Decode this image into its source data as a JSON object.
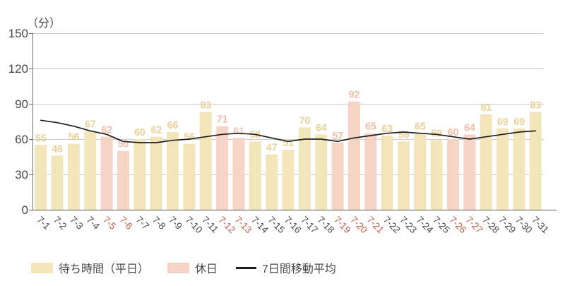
{
  "chart_data": {
    "type": "bar",
    "title": "",
    "ylabel": "（分）",
    "xlabel": "",
    "ylim": [
      0,
      150
    ],
    "yticks": [
      0,
      30,
      60,
      90,
      120,
      150
    ],
    "grid": true,
    "legend_position": "bottom",
    "categories": [
      "7-1",
      "7-2",
      "7-3",
      "7-4",
      "7-5",
      "7-6",
      "7-7",
      "7-8",
      "7-9",
      "7-10",
      "7-11",
      "7-12",
      "7-13",
      "7-14",
      "7-15",
      "7-16",
      "7-17",
      "7-18",
      "7-19",
      "7-20",
      "7-21",
      "7-22",
      "7-23",
      "7-24",
      "7-25",
      "7-26",
      "7-27",
      "7-28",
      "7-29",
      "7-30",
      "7-31"
    ],
    "values": [
      55,
      46,
      56,
      67,
      62,
      50,
      60,
      62,
      66,
      56,
      83,
      71,
      61,
      58,
      47,
      51,
      70,
      64,
      57,
      92,
      65,
      63,
      58,
      65,
      59,
      60,
      64,
      81,
      69,
      69,
      83
    ],
    "holiday_flags": [
      0,
      0,
      0,
      0,
      1,
      1,
      0,
      0,
      0,
      0,
      0,
      1,
      1,
      0,
      0,
      0,
      0,
      0,
      1,
      1,
      1,
      0,
      0,
      0,
      0,
      1,
      1,
      0,
      0,
      0,
      0
    ],
    "holiday_dates": [
      "7-5",
      "7-6",
      "7-12",
      "7-13",
      "7-19",
      "7-20",
      "7-21",
      "7-26",
      "7-27"
    ],
    "moving_average_estimated": [
      76,
      74,
      71,
      67,
      64,
      58,
      57,
      57,
      59,
      60,
      62,
      64,
      65,
      64,
      61,
      58,
      60,
      60,
      58,
      61,
      63,
      65,
      66,
      65,
      64,
      62,
      60,
      62,
      64,
      66,
      67
    ],
    "legend": [
      {
        "label": "待ち時間（平日）",
        "swatch": "bar",
        "color": "#f3e5ba"
      },
      {
        "label": "休日",
        "swatch": "bar",
        "color": "#f6d4c5"
      },
      {
        "label": "7日間移動平均",
        "swatch": "line",
        "color": "#1f1f1f"
      }
    ],
    "colors": {
      "weekday_bar": "#f3e5ba",
      "weekday_value_label": "#e8d299",
      "holiday_bar": "#f6d4c5",
      "holiday_value_label": "#efc0ab",
      "weekday_tick_label": "#4a4a4a",
      "holiday_tick_label": "#c1604a",
      "grid_line": "#cccccc",
      "axis_line": "#595959",
      "y_axis_line": "#6b6b6b",
      "moving_average_line": "#1f1f1f"
    }
  }
}
